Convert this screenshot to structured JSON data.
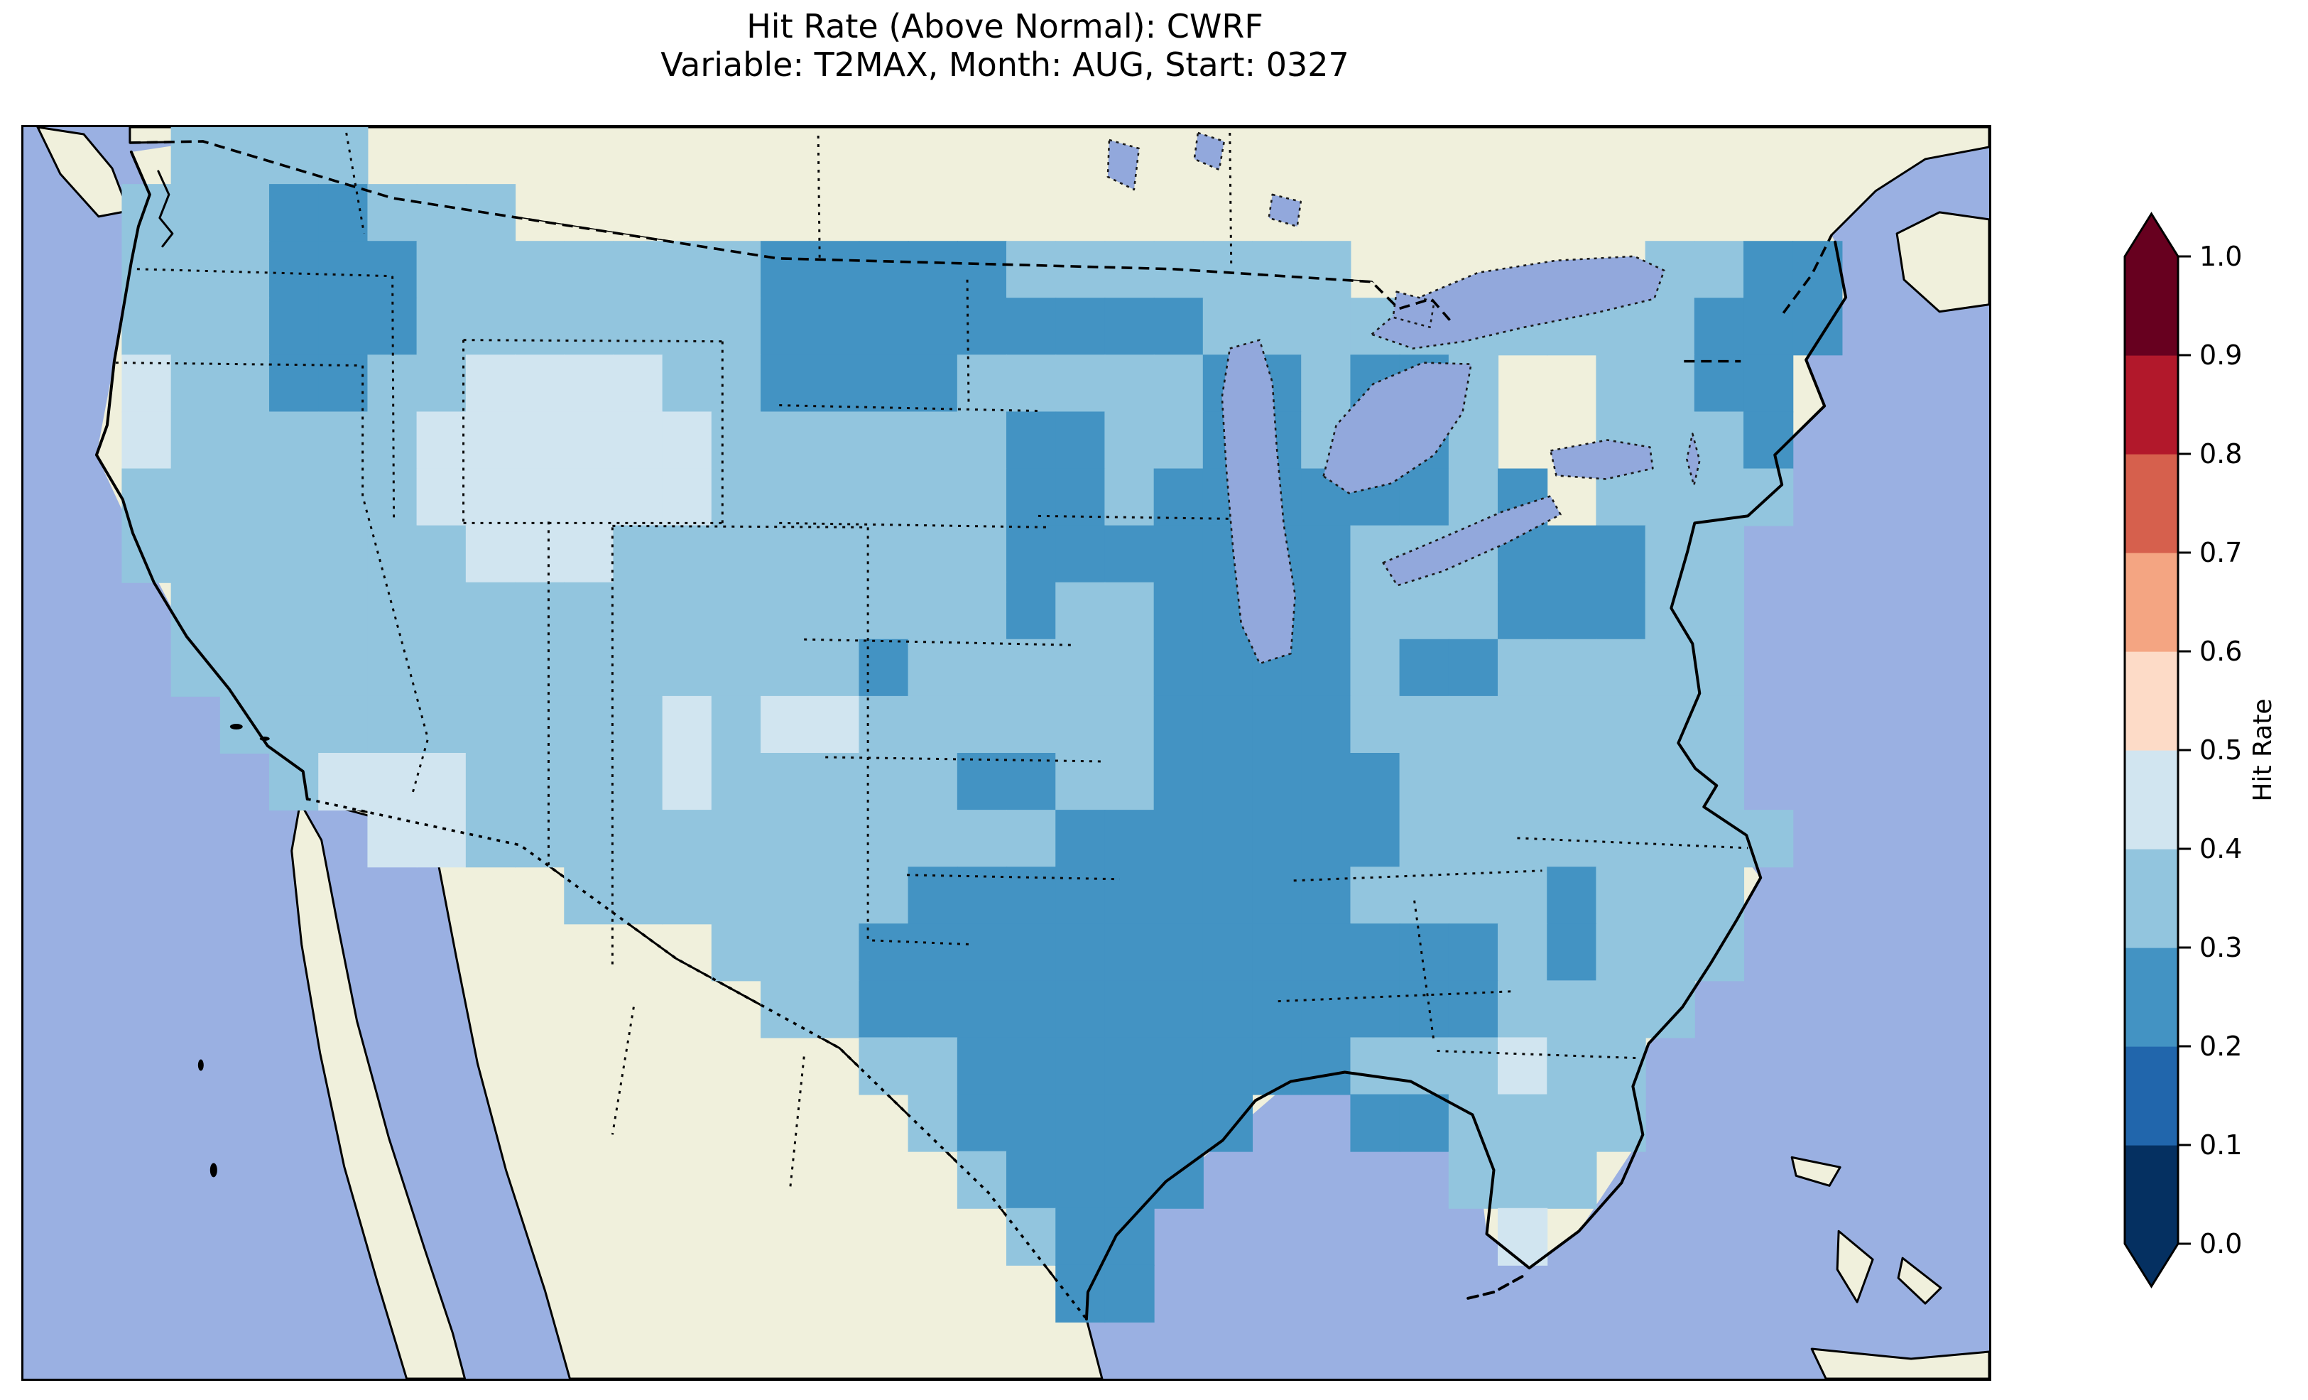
{
  "title": {
    "line1": "Hit Rate (Above Normal): CWRF",
    "line2": "Variable: T2MAX, Month: AUG, Start: 0327"
  },
  "colorbar": {
    "label": "Hit Rate",
    "ticks": [
      "0.0",
      "0.1",
      "0.2",
      "0.3",
      "0.4",
      "0.5",
      "0.6",
      "0.7",
      "0.8",
      "0.9",
      "1.0"
    ],
    "bin_colors_low_to_high": [
      "#053061",
      "#2166ac",
      "#4393c3",
      "#92c5de",
      "#d1e5f0",
      "#fddbc7",
      "#f4a582",
      "#d6604d",
      "#b2182b",
      "#67001f"
    ],
    "under_arrow_color": "#053061",
    "over_arrow_color": "#67001f"
  },
  "map": {
    "ocean_color": "#9ab0e2",
    "land_color": "#f0f0dc",
    "lake_color": "#92a8dc",
    "coastline_color": "#000000"
  },
  "chart_data": {
    "type": "heatmap",
    "title": "Hit Rate (Above Normal): CWRF",
    "subtitle": "Variable: T2MAX, Month: AUG, Start: 0327",
    "metric": "Hit Rate (Above Normal)",
    "model": "CWRF",
    "variable": "T2MAX",
    "month": "AUG",
    "start": "0327",
    "colorbar_label": "Hit Rate",
    "colorbar_range": [
      0.0,
      1.0
    ],
    "colorbar_bin_width": 0.1,
    "value_bins_present_on_map": [
      "0.2-0.3",
      "0.3-0.4",
      "0.4-0.5"
    ],
    "grid": {
      "cols": 40,
      "rows": 22,
      "cell_key": {
        "2": {
          "range": "0.2-0.3",
          "value_mid": 0.25,
          "color": "#4393c3"
        },
        "3": {
          "range": "0.3-0.4",
          "value_mid": 0.35,
          "color": "#92c5de"
        },
        "4": {
          "range": "0.4-0.5",
          "value_mid": 0.45,
          "color": "#d1e5f0"
        }
      },
      "no_data_char": ".",
      "rows_encoded": [
        "...3333.................................",
        "..33322333..............................",
        "..3332223333333222223333333......3322...",
        "..33322233333332222222223333333333222...",
        "..4332233444433222233333223223..3322....",
        "..4333334444443333332233223223..3332....",
        "..33333344444433333322322222232.3333....",
        "..333333344433333333222222233322233.....",
        "...33333333333333333233222233322233.....",
        "...33333333333333233333222232233333.....",
        "....3333333334344333333222233333333.....",
        ".....344433334333332233222223333333.....",
        ".......44333333333333222222233333333....",
        "...........333333322222222233332333.....",
        "..............333222222222222232333.....",
        "...............3322222222222223333......",
        ".................3322222222333433.......",
        "..................3222222..223333.......",
        "...................32222.....333........",
        "....................322.......4.........",
        ".....................22.................",
        "........................................"
      ]
    },
    "regional_summary": [
      {
        "region": "Washington / Oregon coast",
        "hit_rate": "0.3-0.4 with 0.4-0.5 pockets"
      },
      {
        "region": "Eastern Washington - Idaho panhandle",
        "hit_rate": "0.2-0.3"
      },
      {
        "region": "Wyoming / Northern Rockies",
        "hit_rate": "0.4-0.5"
      },
      {
        "region": "Great Basin (NV/UT) and west Colorado pockets",
        "hit_rate": "0.4-0.5"
      },
      {
        "region": "Northeast Montana - North Dakota border",
        "hit_rate": "0.2-0.3"
      },
      {
        "region": "Central and southern Plains (NE/KS/W-TX)",
        "hit_rate": "0.3-0.4"
      },
      {
        "region": "Central Minnesota, Iowa, Wisconsin, Illinois, Indiana, SE Missouri",
        "hit_rate": "0.2-0.3"
      },
      {
        "region": "Oklahoma, Arkansas, east Texas, Louisiana, Mississippi, Alabama, west Tennessee",
        "hit_rate": "0.2-0.3"
      },
      {
        "region": "Pennsylvania block and coastal Maine",
        "hit_rate": "0.2-0.3"
      },
      {
        "region": "New York / New England / Virginia / Carolinas coast",
        "hit_rate": "0.3-0.4"
      },
      {
        "region": "Florida peninsula",
        "hit_rate": "0.3-0.4 with isolated 0.4-0.5 cells"
      },
      {
        "region": "Southwest (AZ/NM) and California",
        "hit_rate": "0.3-0.4"
      }
    ]
  }
}
